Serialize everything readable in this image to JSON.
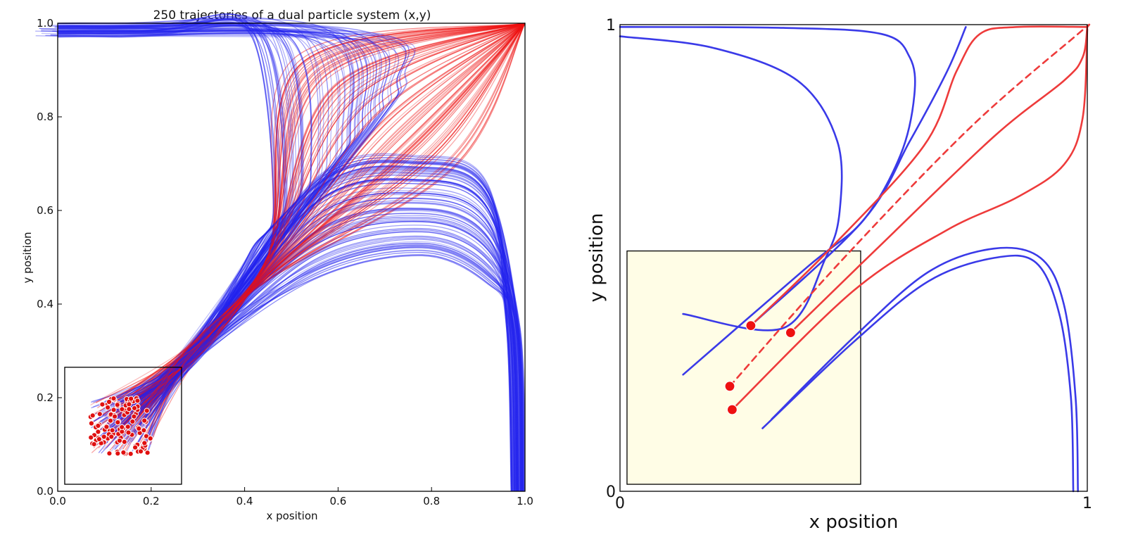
{
  "chart_data": [
    {
      "type": "line",
      "title": "250 trajectories of a dual particle system (x,y)",
      "xlabel": "x position",
      "ylabel": "y position",
      "xlim": [
        0,
        1
      ],
      "ylim": [
        0,
        1
      ],
      "xticks": [
        "0.0",
        "0.2",
        "0.4",
        "0.6",
        "0.8",
        "1.0"
      ],
      "yticks": [
        "0.0",
        "0.2",
        "0.4",
        "0.6",
        "0.8",
        "1.0"
      ],
      "grid": false,
      "num_trajectories": 250,
      "series_colors": {
        "escape": "#2222ee",
        "converge": "#ee1111"
      },
      "start_region": {
        "x": [
          0.07,
          0.2
        ],
        "y": [
          0.08,
          0.2
        ]
      },
      "converge_target": [
        1.0,
        1.0
      ],
      "inset_box": {
        "x": [
          0.015,
          0.265
        ],
        "y": [
          0.015,
          0.265
        ]
      }
    },
    {
      "type": "line",
      "title": "",
      "xlabel": "x position",
      "ylabel": "y position",
      "xlim": [
        0,
        1
      ],
      "ylim": [
        0,
        1
      ],
      "xticks": [
        "0",
        "1"
      ],
      "yticks": [
        "0",
        "1"
      ],
      "grid": false,
      "inset_box": {
        "x": [
          0.015,
          0.515
        ],
        "y": [
          0.015,
          0.515
        ]
      },
      "inset_color": "#fffde6",
      "start_points": [
        {
          "x": 0.28,
          "y": 0.355,
          "kind": "red"
        },
        {
          "x": 0.365,
          "y": 0.34,
          "kind": "red"
        },
        {
          "x": 0.235,
          "y": 0.225,
          "kind": "red-dashed"
        },
        {
          "x": 0.24,
          "y": 0.175,
          "kind": "red"
        }
      ],
      "series": [
        {
          "kind": "blue",
          "points": [
            [
              0,
              0.975
            ],
            [
              0.2,
              0.95
            ],
            [
              0.38,
              0.88
            ],
            [
              0.465,
              0.75
            ],
            [
              0.47,
              0.6
            ],
            [
              0.44,
              0.5
            ],
            [
              0.35,
              0.35
            ],
            [
              0.135,
              0.38
            ]
          ]
        },
        {
          "kind": "blue",
          "points": [
            [
              0,
              0.995
            ],
            [
              0.35,
              0.993
            ],
            [
              0.56,
              0.98
            ],
            [
              0.62,
              0.93
            ],
            [
              0.63,
              0.85
            ],
            [
              0.6,
              0.72
            ],
            [
              0.52,
              0.58
            ],
            [
              0.4,
              0.48
            ],
            [
              0.135,
              0.25
            ]
          ]
        },
        {
          "kind": "blue",
          "points": [
            [
              0.74,
              0.995
            ],
            [
              0.7,
              0.9
            ],
            [
              0.62,
              0.75
            ],
            [
              0.52,
              0.58
            ],
            [
              0.28,
              0.355
            ]
          ]
        },
        {
          "kind": "red",
          "points": [
            [
              0.28,
              0.355
            ],
            [
              0.45,
              0.52
            ],
            [
              0.65,
              0.74
            ],
            [
              0.72,
              0.9
            ],
            [
              0.77,
              0.98
            ],
            [
              0.85,
              0.995
            ],
            [
              1.0,
              0.995
            ]
          ]
        },
        {
          "kind": "red-dashed",
          "points": [
            [
              0.235,
              0.225
            ],
            [
              0.47,
              0.49
            ],
            [
              0.75,
              0.78
            ],
            [
              0.98,
              0.98
            ],
            [
              1.0,
              0.995
            ]
          ]
        },
        {
          "kind": "red",
          "points": [
            [
              0.365,
              0.34
            ],
            [
              0.55,
              0.52
            ],
            [
              0.8,
              0.76
            ],
            [
              0.95,
              0.88
            ],
            [
              0.99,
              0.93
            ],
            [
              1.0,
              0.995
            ]
          ]
        },
        {
          "kind": "red",
          "points": [
            [
              0.24,
              0.175
            ],
            [
              0.5,
              0.43
            ],
            [
              0.7,
              0.56
            ],
            [
              0.85,
              0.63
            ],
            [
              0.95,
              0.7
            ],
            [
              0.99,
              0.8
            ],
            [
              1.0,
              0.99
            ]
          ]
        },
        {
          "kind": "blue",
          "points": [
            [
              0.325,
              0.155
            ],
            [
              0.5,
              0.33
            ],
            [
              0.66,
              0.47
            ],
            [
              0.8,
              0.52
            ],
            [
              0.9,
              0.5
            ],
            [
              0.95,
              0.4
            ],
            [
              0.975,
              0.2
            ],
            [
              0.98,
              0.0
            ]
          ]
        },
        {
          "kind": "blue",
          "points": [
            [
              0.305,
              0.135
            ],
            [
              0.5,
              0.32
            ],
            [
              0.66,
              0.45
            ],
            [
              0.8,
              0.5
            ],
            [
              0.89,
              0.49
            ],
            [
              0.94,
              0.38
            ],
            [
              0.965,
              0.2
            ],
            [
              0.97,
              0.0
            ]
          ]
        }
      ]
    }
  ]
}
